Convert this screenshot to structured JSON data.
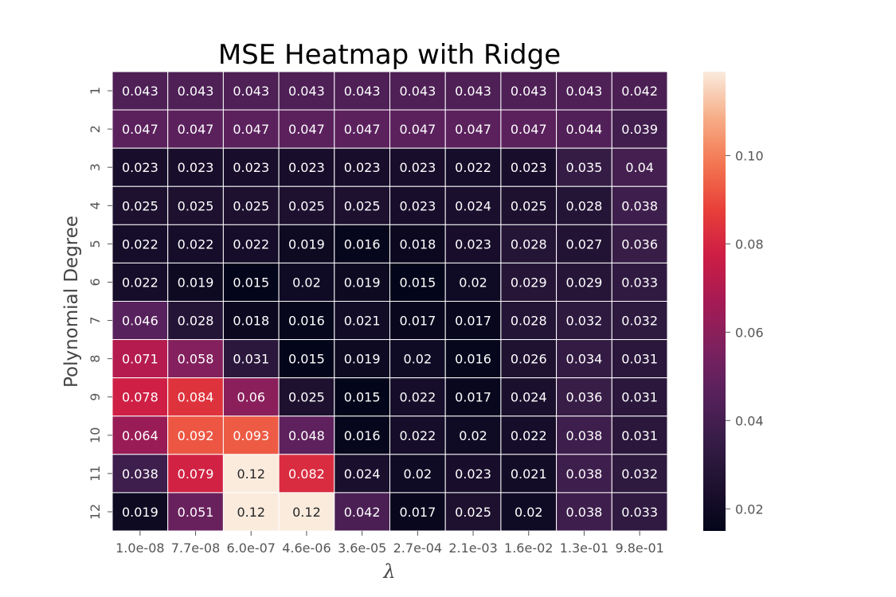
{
  "chart_data": {
    "type": "heatmap",
    "title": "MSE Heatmap with Ridge",
    "xlabel": "λ",
    "ylabel": "Polynomial Degree",
    "x_categories": [
      "1.0e-08",
      "7.7e-08",
      "6.0e-07",
      "4.6e-06",
      "3.6e-05",
      "2.7e-04",
      "2.1e-03",
      "1.6e-02",
      "1.3e-01",
      "9.8e-01"
    ],
    "y_categories": [
      "1",
      "2",
      "3",
      "4",
      "5",
      "6",
      "7",
      "8",
      "9",
      "10",
      "11",
      "12"
    ],
    "values": [
      [
        0.043,
        0.043,
        0.043,
        0.043,
        0.043,
        0.043,
        0.043,
        0.043,
        0.043,
        0.042
      ],
      [
        0.047,
        0.047,
        0.047,
        0.047,
        0.047,
        0.047,
        0.047,
        0.047,
        0.044,
        0.039
      ],
      [
        0.023,
        0.023,
        0.023,
        0.023,
        0.023,
        0.023,
        0.022,
        0.023,
        0.035,
        0.04
      ],
      [
        0.025,
        0.025,
        0.025,
        0.025,
        0.025,
        0.023,
        0.024,
        0.025,
        0.028,
        0.038
      ],
      [
        0.022,
        0.022,
        0.022,
        0.019,
        0.016,
        0.018,
        0.023,
        0.028,
        0.027,
        0.036
      ],
      [
        0.022,
        0.019,
        0.015,
        0.02,
        0.019,
        0.015,
        0.02,
        0.029,
        0.029,
        0.033
      ],
      [
        0.046,
        0.028,
        0.018,
        0.016,
        0.021,
        0.017,
        0.017,
        0.028,
        0.032,
        0.032
      ],
      [
        0.071,
        0.058,
        0.031,
        0.015,
        0.019,
        0.02,
        0.016,
        0.026,
        0.034,
        0.031
      ],
      [
        0.078,
        0.084,
        0.06,
        0.025,
        0.015,
        0.022,
        0.017,
        0.024,
        0.036,
        0.031
      ],
      [
        0.064,
        0.092,
        0.093,
        0.048,
        0.016,
        0.022,
        0.02,
        0.022,
        0.038,
        0.031
      ],
      [
        0.038,
        0.079,
        0.12,
        0.082,
        0.024,
        0.02,
        0.023,
        0.021,
        0.038,
        0.032
      ],
      [
        0.019,
        0.051,
        0.12,
        0.12,
        0.042,
        0.017,
        0.025,
        0.02,
        0.038,
        0.033
      ]
    ],
    "colormap": "rocket",
    "vmin": 0.015,
    "vmax": 0.119,
    "colorbar_ticks": [
      0.02,
      0.04,
      0.06,
      0.08,
      0.1
    ],
    "colorbar_tick_labels": [
      "0.02",
      "0.04",
      "0.06",
      "0.08",
      "0.10"
    ],
    "annotations": true,
    "grid": false,
    "legend": "colorbar-right"
  }
}
